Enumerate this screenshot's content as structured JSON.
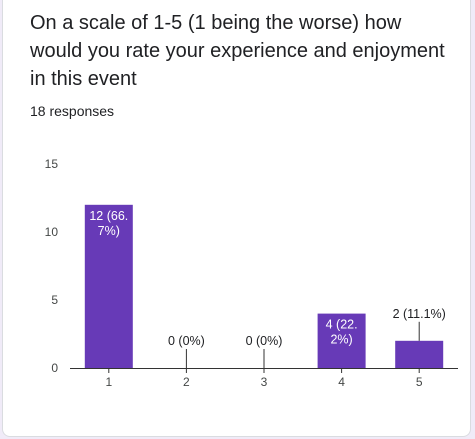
{
  "question": {
    "title": "On a scale of 1-5 (1 being the worse) how would you rate your experience and enjoyment in this event",
    "responses": "18 responses"
  },
  "colors": {
    "bar": "#673ab7",
    "axis": "#333333",
    "gridline": "#cccccc",
    "label_inside": "#ffffff",
    "label_outside": "#202124"
  },
  "chart_data": {
    "type": "bar",
    "categories": [
      "1",
      "2",
      "3",
      "4",
      "5"
    ],
    "values": [
      12,
      0,
      0,
      4,
      2
    ],
    "data_labels": [
      "12 (66.7%)",
      "0 (0%)",
      "0 (0%)",
      "4 (22.2%)",
      "2 (11.1%)"
    ],
    "yticks": [
      "0",
      "5",
      "10",
      "15"
    ],
    "ylim": [
      0,
      15
    ],
    "grid": false
  }
}
